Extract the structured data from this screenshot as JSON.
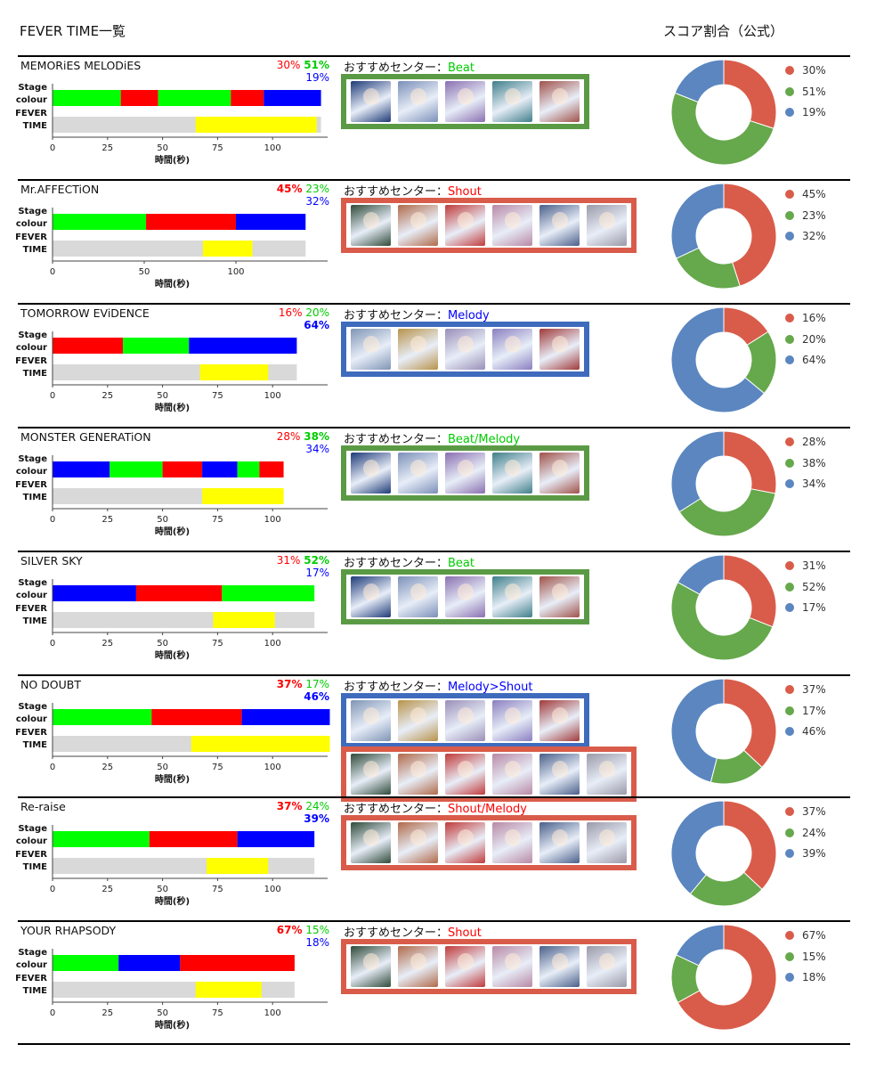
{
  "header": {
    "left_title": "FEVER TIME一覧",
    "right_title": "スコア割合（公式）"
  },
  "axis_shared": {
    "stage_label": [
      "Stage",
      "colour"
    ],
    "fever_label": [
      "FEVER",
      "TIME"
    ],
    "xlabel": "時間(秒)"
  },
  "colors": {
    "beat_red": "#ff0000",
    "shout_green": "#00ff00",
    "melody_blue": "#0000ff",
    "fever_yellow": "#ffff00",
    "track_gray": "#d9d9d9",
    "pie_red": "#d95c4a",
    "pie_green": "#66a84c",
    "pie_blue": "#5b86c0",
    "box_green": "#5b9a45",
    "box_red": "#d95c4a",
    "box_blue": "#3f6bbd"
  },
  "songs": [
    {
      "title": "MEMORiES MELODiES",
      "pcts": [
        {
          "t": "30%",
          "c": "#ff0000",
          "b": false
        },
        {
          "t": "51%",
          "c": "#00cc00",
          "b": true
        },
        {
          "t": "19%",
          "c": "#0000ff",
          "b": false
        }
      ],
      "rec_label": "おすすめセンター：",
      "rec_type": "Beat",
      "rec_color": "#00cc00",
      "card_groups": [
        {
          "border": "#5b9a45",
          "cards": [
            "#1e3a78",
            "#7b8fb8",
            "#8a6fb0",
            "#3f7f8a",
            "#a0524a"
          ]
        }
      ]
    },
    {
      "title": "Mr.AFFECTiON",
      "pcts": [
        {
          "t": "45%",
          "c": "#ff0000",
          "b": true
        },
        {
          "t": "23%",
          "c": "#00cc00",
          "b": false
        },
        {
          "t": "32%",
          "c": "#0000ff",
          "b": false
        }
      ],
      "rec_label": "おすすめセンター：",
      "rec_type": "Shout",
      "rec_color": "#ff0000",
      "card_groups": [
        {
          "border": "#d95c4a",
          "cards": [
            "#2f4a3a",
            "#b06a4a",
            "#c03a3a",
            "#b889a6",
            "#4a5f8a",
            "#9a9aa8"
          ]
        }
      ]
    },
    {
      "title": "TOMORROW EViDENCE",
      "pcts": [
        {
          "t": "16%",
          "c": "#ff0000",
          "b": false
        },
        {
          "t": "20%",
          "c": "#00cc00",
          "b": false
        },
        {
          "t": "64%",
          "c": "#0000ff",
          "b": true
        }
      ],
      "rec_label": "おすすめセンター：",
      "rec_type": "Melody",
      "rec_color": "#0000ff",
      "card_groups": [
        {
          "border": "#3f6bbd",
          "cards": [
            "#7f95b5",
            "#b8934a",
            "#9a8fb8",
            "#8a7fc0",
            "#a03a3a"
          ]
        }
      ]
    },
    {
      "title": "MONSTER GENERATiON",
      "pcts": [
        {
          "t": "28%",
          "c": "#ff0000",
          "b": false
        },
        {
          "t": "38%",
          "c": "#00cc00",
          "b": true
        },
        {
          "t": "34%",
          "c": "#0000ff",
          "b": false
        }
      ],
      "rec_label": "おすすめセンター：",
      "rec_type": "Beat/Melody",
      "rec_color": "#00cc00",
      "card_groups": [
        {
          "border": "#5b9a45",
          "cards": [
            "#1e3a78",
            "#7b8fb8",
            "#8a6fb0",
            "#3f7f8a",
            "#a0524a"
          ]
        }
      ]
    },
    {
      "title": "SILVER SKY",
      "pcts": [
        {
          "t": "31%",
          "c": "#ff0000",
          "b": false
        },
        {
          "t": "52%",
          "c": "#00cc00",
          "b": true
        },
        {
          "t": "17%",
          "c": "#0000ff",
          "b": false
        }
      ],
      "rec_label": "おすすめセンター：",
      "rec_type": "Beat",
      "rec_color": "#00cc00",
      "card_groups": [
        {
          "border": "#5b9a45",
          "cards": [
            "#1e3a78",
            "#7b8fb8",
            "#8a6fb0",
            "#3f7f8a",
            "#a0524a"
          ]
        }
      ]
    },
    {
      "title": "NO DOUBT",
      "pcts": [
        {
          "t": "37%",
          "c": "#ff0000",
          "b": true
        },
        {
          "t": "17%",
          "c": "#00cc00",
          "b": false
        },
        {
          "t": "46%",
          "c": "#0000ff",
          "b": true
        }
      ],
      "rec_label": "おすすめセンター：",
      "rec_type": "Melody>Shout",
      "rec_color": "#0000ff",
      "card_groups": [
        {
          "border": "#3f6bbd",
          "cards": [
            "#7f95b5",
            "#b8934a",
            "#9a8fb8",
            "#8a7fc0",
            "#a03a3a"
          ]
        },
        {
          "border": "#d95c4a",
          "cards": [
            "#2f4a3a",
            "#b06a4a",
            "#c03a3a",
            "#b889a6",
            "#4a5f8a",
            "#9a9aa8"
          ]
        }
      ]
    },
    {
      "title": "Re-raise",
      "pcts": [
        {
          "t": "37%",
          "c": "#ff0000",
          "b": true
        },
        {
          "t": "24%",
          "c": "#00cc00",
          "b": false
        },
        {
          "t": "39%",
          "c": "#0000ff",
          "b": true
        }
      ],
      "rec_label": "おすすめセンター：",
      "rec_type": "Shout/Melody",
      "rec_color": "#ff0000",
      "card_groups": [
        {
          "border": "#d95c4a",
          "cards": [
            "#2f4a3a",
            "#b06a4a",
            "#c03a3a",
            "#b889a6",
            "#4a5f8a",
            "#9a9aa8"
          ]
        }
      ]
    },
    {
      "title": "YOUR RHAPSODY",
      "pcts": [
        {
          "t": "67%",
          "c": "#ff0000",
          "b": true
        },
        {
          "t": "15%",
          "c": "#00cc00",
          "b": false
        },
        {
          "t": "18%",
          "c": "#0000ff",
          "b": false
        }
      ],
      "rec_label": "おすすめセンター：",
      "rec_type": "Shout",
      "rec_color": "#ff0000",
      "card_groups": [
        {
          "border": "#d95c4a",
          "cards": [
            "#2f4a3a",
            "#b06a4a",
            "#c03a3a",
            "#b889a6",
            "#4a5f8a",
            "#9a9aa8"
          ]
        }
      ]
    }
  ],
  "chart_data": [
    {
      "type": "bar",
      "title": "MEMORiES MELODiES",
      "xlabel": "時間(秒)",
      "xlim": [
        0,
        125
      ],
      "xticks": [
        0,
        25,
        50,
        75,
        100
      ],
      "stage_segments": [
        {
          "from": 0,
          "to": 31,
          "color": "green"
        },
        {
          "from": 31,
          "to": 48,
          "color": "red"
        },
        {
          "from": 48,
          "to": 81,
          "color": "green"
        },
        {
          "from": 81,
          "to": 96,
          "color": "red"
        },
        {
          "from": 96,
          "to": 122,
          "color": "blue"
        }
      ],
      "total": 122,
      "fever": [
        65,
        120
      ]
    },
    {
      "type": "bar",
      "title": "Mr.AFFECTiON",
      "xlabel": "時間(秒)",
      "xlim": [
        0,
        150
      ],
      "xticks": [
        0,
        50,
        100
      ],
      "stage_segments": [
        {
          "from": 0,
          "to": 51,
          "color": "green"
        },
        {
          "from": 51,
          "to": 100,
          "color": "red"
        },
        {
          "from": 100,
          "to": 138,
          "color": "blue"
        }
      ],
      "total": 138,
      "fever": [
        82,
        109
      ]
    },
    {
      "type": "bar",
      "title": "TOMORROW EViDENCE",
      "xlabel": "時間(秒)",
      "xlim": [
        0,
        125
      ],
      "xticks": [
        0,
        25,
        50,
        75,
        100
      ],
      "stage_segments": [
        {
          "from": 0,
          "to": 32,
          "color": "red"
        },
        {
          "from": 32,
          "to": 62,
          "color": "green"
        },
        {
          "from": 62,
          "to": 111,
          "color": "blue"
        }
      ],
      "total": 111,
      "fever": [
        67,
        98
      ]
    },
    {
      "type": "bar",
      "title": "MONSTER GENERATiON",
      "xlabel": "時間(秒)",
      "xlim": [
        0,
        125
      ],
      "xticks": [
        0,
        25,
        50,
        75,
        100
      ],
      "stage_segments": [
        {
          "from": 0,
          "to": 26,
          "color": "blue"
        },
        {
          "from": 26,
          "to": 50,
          "color": "green"
        },
        {
          "from": 50,
          "to": 68,
          "color": "red"
        },
        {
          "from": 68,
          "to": 84,
          "color": "blue"
        },
        {
          "from": 84,
          "to": 94,
          "color": "green"
        },
        {
          "from": 94,
          "to": 105,
          "color": "red"
        }
      ],
      "total": 105,
      "fever": [
        68,
        105
      ]
    },
    {
      "type": "bar",
      "title": "SILVER SKY",
      "xlabel": "時間(秒)",
      "xlim": [
        0,
        125
      ],
      "xticks": [
        0,
        25,
        50,
        75,
        100
      ],
      "stage_segments": [
        {
          "from": 0,
          "to": 38,
          "color": "blue"
        },
        {
          "from": 38,
          "to": 77,
          "color": "red"
        },
        {
          "from": 77,
          "to": 119,
          "color": "green"
        }
      ],
      "total": 119,
      "fever": [
        73,
        101
      ]
    },
    {
      "type": "bar",
      "title": "NO DOUBT",
      "xlabel": "時間(秒)",
      "xlim": [
        0,
        125
      ],
      "xticks": [
        0,
        25,
        50,
        75,
        100
      ],
      "stage_segments": [
        {
          "from": 0,
          "to": 45,
          "color": "green"
        },
        {
          "from": 45,
          "to": 86,
          "color": "red"
        },
        {
          "from": 86,
          "to": 126,
          "color": "blue"
        }
      ],
      "total": 126,
      "fever": [
        63,
        126
      ]
    },
    {
      "type": "bar",
      "title": "Re-raise",
      "xlabel": "時間(秒)",
      "xlim": [
        0,
        125
      ],
      "xticks": [
        0,
        25,
        50,
        75,
        100
      ],
      "stage_segments": [
        {
          "from": 0,
          "to": 44,
          "color": "green"
        },
        {
          "from": 44,
          "to": 84,
          "color": "red"
        },
        {
          "from": 84,
          "to": 119,
          "color": "blue"
        }
      ],
      "total": 119,
      "fever": [
        70,
        98
      ]
    },
    {
      "type": "bar",
      "title": "YOUR RHAPSODY",
      "xlabel": "時間(秒)",
      "xlim": [
        0,
        125
      ],
      "xticks": [
        0,
        25,
        50,
        75,
        100
      ],
      "stage_segments": [
        {
          "from": 0,
          "to": 30,
          "color": "green"
        },
        {
          "from": 30,
          "to": 58,
          "color": "blue"
        },
        {
          "from": 58,
          "to": 110,
          "color": "red"
        }
      ],
      "total": 110,
      "fever": [
        65,
        95
      ]
    },
    {
      "type": "pie",
      "title": "スコア割合（公式）",
      "series": [
        {
          "name": "MEMORiES MELODiES",
          "values": [
            30,
            51,
            19
          ]
        },
        {
          "name": "Mr.AFFECTiON",
          "values": [
            45,
            23,
            32
          ]
        },
        {
          "name": "TOMORROW EViDENCE",
          "values": [
            16,
            20,
            64
          ]
        },
        {
          "name": "MONSTER GENERATiON",
          "values": [
            28,
            38,
            34
          ]
        },
        {
          "name": "SILVER SKY",
          "values": [
            31,
            52,
            17
          ]
        },
        {
          "name": "NO DOUBT",
          "values": [
            37,
            17,
            46
          ]
        },
        {
          "name": "Re-raise",
          "values": [
            37,
            24,
            39
          ]
        },
        {
          "name": "YOUR RHAPSODY",
          "values": [
            67,
            15,
            18
          ]
        }
      ],
      "slice_colors": [
        "#d95c4a",
        "#66a84c",
        "#5b86c0"
      ],
      "legend_labels": [
        [
          "30%",
          "51%",
          "19%"
        ],
        [
          "45%",
          "23%",
          "32%"
        ],
        [
          "16%",
          "20%",
          "64%"
        ],
        [
          "28%",
          "38%",
          "34%"
        ],
        [
          "31%",
          "52%",
          "17%"
        ],
        [
          "37%",
          "17%",
          "46%"
        ],
        [
          "37%",
          "24%",
          "39%"
        ],
        [
          "67%",
          "15%",
          "18%"
        ]
      ]
    }
  ]
}
